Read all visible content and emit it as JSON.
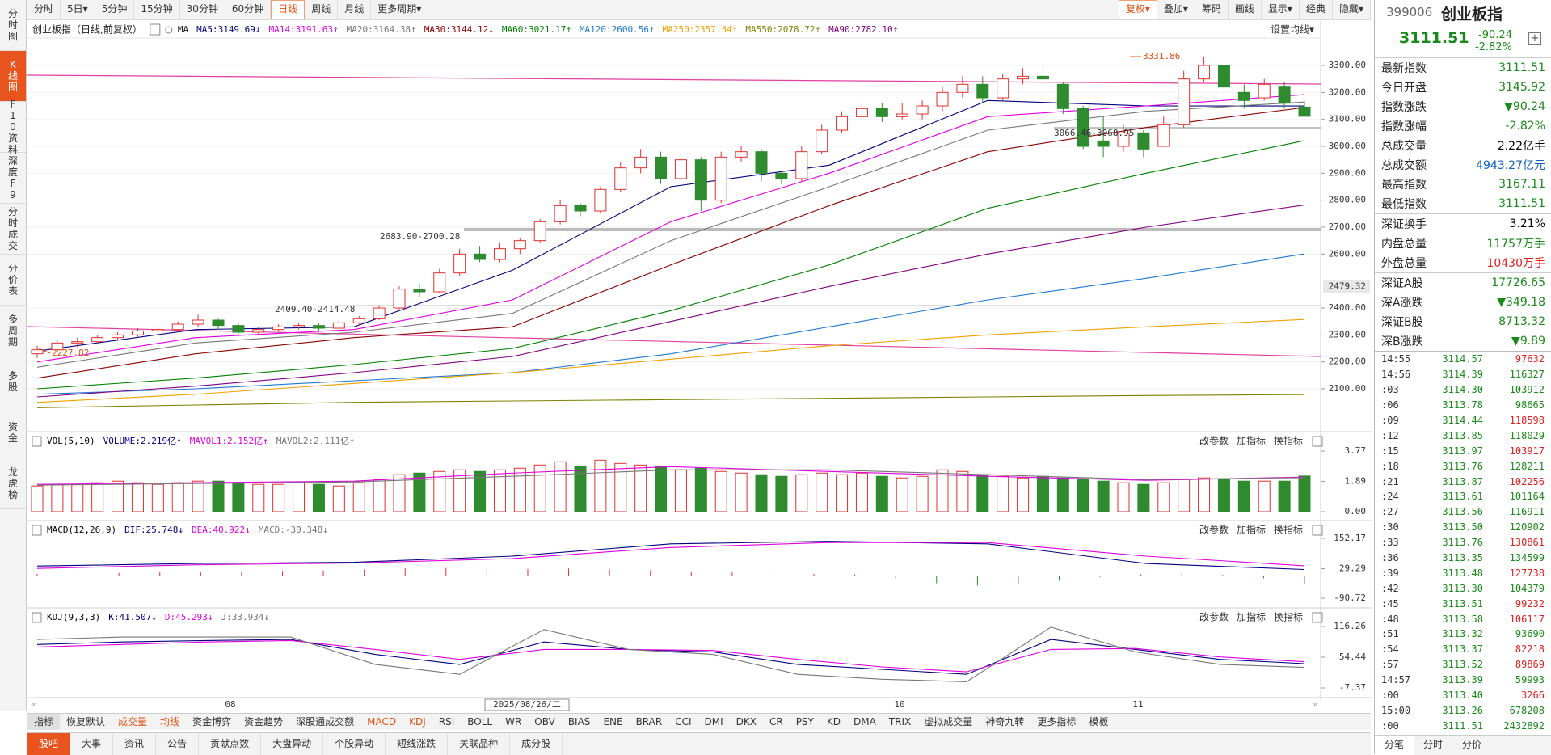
{
  "toolbar": {
    "periods": [
      "分时",
      "5日▾",
      "5分钟",
      "15分钟",
      "30分钟",
      "60分钟",
      "日线",
      "周线",
      "月线",
      "更多周期▾"
    ],
    "active_period": 6,
    "tools": [
      "复权▾",
      "叠加▾",
      "筹码",
      "画线",
      "显示▾",
      "经典",
      "隐藏▾"
    ],
    "active_tool": 0
  },
  "sidebar": {
    "items": [
      "分时图",
      "K线图",
      "F10资料",
      "深度F9",
      "分时成交",
      "分价表",
      "多周期",
      "多股",
      "资金",
      "龙虎榜"
    ],
    "active": 1
  },
  "chart_data": {
    "type": "candlestick",
    "title": "创业板指（日线,前复权）",
    "ma_prefix": "MA",
    "settings_button": "设置均线▾",
    "up_color": "#e03030",
    "down_color": "#2e8b2e",
    "candles": [
      [
        2230,
        2245,
        2260,
        2215
      ],
      [
        2245,
        2270,
        2280,
        2235
      ],
      [
        2270,
        2275,
        2290,
        2255
      ],
      [
        2275,
        2290,
        2300,
        2265
      ],
      [
        2290,
        2300,
        2310,
        2280
      ],
      [
        2300,
        2315,
        2325,
        2290
      ],
      [
        2315,
        2320,
        2330,
        2305
      ],
      [
        2320,
        2340,
        2350,
        2310
      ],
      [
        2340,
        2355,
        2375,
        2330
      ],
      [
        2355,
        2335,
        2360,
        2320
      ],
      [
        2335,
        2310,
        2345,
        2300
      ],
      [
        2310,
        2320,
        2330,
        2300
      ],
      [
        2320,
        2330,
        2340,
        2310
      ],
      [
        2330,
        2335,
        2345,
        2320
      ],
      [
        2335,
        2325,
        2345,
        2315
      ],
      [
        2325,
        2345,
        2355,
        2315
      ],
      [
        2345,
        2360,
        2370,
        2335
      ],
      [
        2360,
        2400,
        2410,
        2355
      ],
      [
        2400,
        2470,
        2480,
        2395
      ],
      [
        2470,
        2460,
        2490,
        2440
      ],
      [
        2460,
        2530,
        2545,
        2455
      ],
      [
        2530,
        2600,
        2620,
        2520
      ],
      [
        2600,
        2580,
        2630,
        2570
      ],
      [
        2580,
        2620,
        2640,
        2570
      ],
      [
        2620,
        2650,
        2660,
        2600
      ],
      [
        2650,
        2720,
        2730,
        2640
      ],
      [
        2720,
        2780,
        2800,
        2710
      ],
      [
        2780,
        2760,
        2790,
        2740
      ],
      [
        2760,
        2840,
        2850,
        2750
      ],
      [
        2840,
        2920,
        2940,
        2830
      ],
      [
        2920,
        2960,
        2990,
        2900
      ],
      [
        2960,
        2880,
        2980,
        2860
      ],
      [
        2880,
        2950,
        2970,
        2870
      ],
      [
        2950,
        2800,
        2960,
        2760
      ],
      [
        2800,
        2960,
        2980,
        2790
      ],
      [
        2960,
        2980,
        3000,
        2940
      ],
      [
        2980,
        2900,
        2990,
        2870
      ],
      [
        2900,
        2880,
        2910,
        2860
      ],
      [
        2880,
        2980,
        3000,
        2870
      ],
      [
        2980,
        3060,
        3080,
        2970
      ],
      [
        3060,
        3110,
        3130,
        3050
      ],
      [
        3110,
        3140,
        3180,
        3100
      ],
      [
        3140,
        3110,
        3160,
        3090
      ],
      [
        3110,
        3120,
        3160,
        3100
      ],
      [
        3120,
        3150,
        3170,
        3100
      ],
      [
        3150,
        3200,
        3220,
        3130
      ],
      [
        3200,
        3230,
        3260,
        3180
      ],
      [
        3230,
        3180,
        3260,
        3160
      ],
      [
        3180,
        3250,
        3270,
        3170
      ],
      [
        3250,
        3260,
        3290,
        3230
      ],
      [
        3260,
        3250,
        3310,
        3240
      ],
      [
        3230,
        3140,
        3240,
        3120
      ],
      [
        3140,
        3000,
        3150,
        2990
      ],
      [
        3020,
        3000,
        3110,
        2960
      ],
      [
        3000,
        3050,
        3080,
        2980
      ],
      [
        3050,
        2990,
        3060,
        2960
      ],
      [
        3000,
        3080,
        3110,
        3000
      ],
      [
        3080,
        3250,
        3280,
        3070
      ],
      [
        3250,
        3300,
        3331.86,
        3240
      ],
      [
        3300,
        3220,
        3310,
        3200
      ],
      [
        3200,
        3170,
        3230,
        3140
      ],
      [
        3180,
        3230,
        3250,
        3170
      ],
      [
        3220,
        3160,
        3240,
        3140
      ],
      [
        3145.92,
        3111.51,
        3167.11,
        3111.51
      ]
    ],
    "ylim": [
      1950,
      3405
    ],
    "yticks": [
      {
        "value": 3300,
        "label": "3300.00"
      },
      {
        "value": 3200,
        "label": "3200.00"
      },
      {
        "value": 3100,
        "label": "3100.00"
      },
      {
        "value": 3000,
        "label": "3000.00"
      },
      {
        "value": 2900,
        "label": "2900.00"
      },
      {
        "value": 2800,
        "label": "2800.00"
      },
      {
        "value": 2700,
        "label": "2700.00"
      },
      {
        "value": 2600,
        "label": "2600.00"
      },
      {
        "value": 2400,
        "label": "2400.00"
      },
      {
        "value": 2300,
        "label": "2300.00"
      },
      {
        "value": 2200,
        "label": "2200.00"
      },
      {
        "value": 2100,
        "label": "2100.00"
      }
    ],
    "marker_tick": 2479.32,
    "ma_lines": [
      {
        "label": "MA5:3149.69↓",
        "color": "#000080",
        "values": [
          2240,
          2320,
          2330,
          2540,
          2850,
          2930,
          3170,
          3150,
          3149.69
        ]
      },
      {
        "label": "MA14:3191.63↑",
        "color": "#e000e0",
        "values": [
          2200,
          2290,
          2320,
          2430,
          2720,
          2900,
          3110,
          3150,
          3191.63
        ]
      },
      {
        "label": "MA20:3164.38↑",
        "color": "#777777",
        "values": [
          2180,
          2270,
          2310,
          2380,
          2650,
          2850,
          3060,
          3130,
          3164.38
        ]
      },
      {
        "label": "MA30:3144.12↓",
        "color": "#8b0000",
        "values": [
          2140,
          2230,
          2290,
          2330,
          2560,
          2780,
          2980,
          3070,
          3144.12
        ]
      },
      {
        "label": "MA60:3021.17↑",
        "color": "#008000",
        "values": [
          2100,
          2140,
          2190,
          2250,
          2390,
          2560,
          2770,
          2900,
          3021.17
        ]
      },
      {
        "label": "MA120:2600.56↑",
        "color": "#1e78d0",
        "values": [
          2080,
          2100,
          2130,
          2160,
          2230,
          2330,
          2430,
          2510,
          2600.56
        ]
      },
      {
        "label": "MA250:2357.34↑",
        "color": "#f0a000",
        "values": [
          2050,
          2080,
          2120,
          2160,
          2210,
          2260,
          2300,
          2330,
          2357.34
        ]
      },
      {
        "label": "MA550:2078.72↑",
        "color": "#808000",
        "values": [
          2030,
          2040,
          2050,
          2055,
          2060,
          2065,
          2070,
          2075,
          2078.72
        ]
      },
      {
        "label": "MA90:2782.10↑",
        "color": "#800080",
        "values": [
          2070,
          2110,
          2160,
          2220,
          2350,
          2480,
          2600,
          2700,
          2782.1
        ]
      }
    ],
    "annotations": [
      "3331.86",
      "2227.82"
    ],
    "range_notes": [
      "3066.46-3068.95",
      "2683.90-2700.28",
      "2409.40-2414.48"
    ],
    "x_labels": [
      "08",
      "2025/08/26/二",
      "10",
      "11"
    ],
    "panel_buttons": [
      "改参数",
      "加指标",
      "换指标"
    ],
    "volume": {
      "legend": [
        {
          "label": "VOL(5,10)",
          "color": "#000000"
        },
        {
          "label": "VOLUME:2.219亿↑",
          "color": "#000080"
        },
        {
          "label": "MAVOL1:2.152亿↑",
          "color": "#e000e0",
          "values": [
            1.7,
            1.8,
            1.9,
            2.4,
            2.8,
            2.5,
            2.2,
            1.95,
            2.152
          ]
        },
        {
          "label": "MAVOL2:2.111亿↑",
          "color": "#777777",
          "values": [
            1.65,
            1.75,
            1.85,
            2.2,
            2.6,
            2.6,
            2.3,
            2.0,
            2.111
          ]
        }
      ],
      "values": [
        1.6,
        1.7,
        1.7,
        1.8,
        1.9,
        1.8,
        1.7,
        1.8,
        1.9,
        1.9,
        1.8,
        1.7,
        1.7,
        1.8,
        1.7,
        1.6,
        1.8,
        2.0,
        2.3,
        2.4,
        2.5,
        2.6,
        2.5,
        2.6,
        2.7,
        2.9,
        3.1,
        2.8,
        3.2,
        3.0,
        2.9,
        2.8,
        2.6,
        2.7,
        2.5,
        2.4,
        2.3,
        2.2,
        2.3,
        2.4,
        2.3,
        2.4,
        2.2,
        2.1,
        2.2,
        2.6,
        2.5,
        2.3,
        2.2,
        2.1,
        2.2,
        2.1,
        2.0,
        1.9,
        1.8,
        1.7,
        1.8,
        2.0,
        2.1,
        2.0,
        1.9,
        1.9,
        1.9,
        2.219
      ],
      "ylim": [
        0,
        3.77
      ],
      "yticks": [
        3.77,
        1.89,
        {
          "value": 0,
          "label": "0.00"
        }
      ]
    },
    "macd": {
      "legend": [
        {
          "label": "MACD(12,26,9)",
          "color": "#000000"
        },
        {
          "label": "DIF:25.748↓",
          "color": "#000080",
          "values": [
            40,
            50,
            55,
            80,
            130,
            140,
            130,
            50,
            25.748
          ]
        },
        {
          "label": "DEA:40.922↓",
          "color": "#e000e0",
          "values": [
            30,
            45,
            52,
            70,
            115,
            135,
            135,
            80,
            40.922
          ]
        },
        {
          "label": "MACD:-30.348↓",
          "color": "#777777"
        }
      ],
      "hist": [
        8,
        10,
        12,
        14,
        16,
        18,
        20,
        22,
        26,
        30,
        32,
        30,
        28,
        30,
        26,
        22,
        18,
        14,
        10,
        8,
        6,
        -10,
        -30,
        -40,
        -35,
        -20,
        -5,
        6,
        10,
        4,
        -10,
        -30.348
      ],
      "ylim": [
        -90.72,
        152.17
      ],
      "yticks": [
        152.17,
        29.29,
        -90.72
      ]
    },
    "kdj": {
      "legend": [
        {
          "label": "KDJ(9,3,3)",
          "color": "#000000"
        },
        {
          "label": "K:41.507↓",
          "color": "#000080",
          "values": [
            80,
            85,
            88,
            90,
            60,
            40,
            85,
            70,
            65,
            40,
            30,
            20,
            90,
            70,
            50,
            41.507
          ]
        },
        {
          "label": "D:45.293↓",
          "color": "#e000e0",
          "values": [
            75,
            80,
            85,
            88,
            70,
            50,
            70,
            70,
            68,
            50,
            35,
            25,
            70,
            72,
            55,
            45.293
          ]
        },
        {
          "label": "J:33.934↓",
          "color": "#777777",
          "values": [
            90,
            95,
            95,
            95,
            40,
            20,
            110,
            70,
            60,
            20,
            10,
            5,
            115,
            65,
            40,
            33.934
          ]
        }
      ],
      "ylim": [
        -7.37,
        116.26
      ],
      "yticks": [
        116.26,
        54.44,
        -7.37
      ]
    }
  },
  "indicator_tabs": [
    "指标",
    "恢复默认",
    "成交量",
    "均线",
    "资金博弈",
    "资金趋势",
    "深股通成交额",
    "MACD",
    "KDJ",
    "RSI",
    "BOLL",
    "WR",
    "OBV",
    "BIAS",
    "ENE",
    "BRAR",
    "CCI",
    "DMI",
    "DKX",
    "CR",
    "PSY",
    "KD",
    "DMA",
    "TRIX",
    "虚拟成交量",
    "神奇九转",
    "更多指标",
    "模板"
  ],
  "indicator_highlight": [
    2,
    3,
    7,
    8
  ],
  "bottom_tabs": [
    "股吧",
    "大事",
    "资讯",
    "公告",
    "贡献点数",
    "大盘异动",
    "个股异动",
    "短线涨跌",
    "关联品种",
    "成分股"
  ],
  "bottom_active": 0,
  "quote": {
    "code": "399006",
    "name": "创业板指",
    "price": "3111.51",
    "change": "-90.24",
    "pct": "-2.82%",
    "rows": [
      {
        "label": "最新指数",
        "value": "3111.51",
        "color": "#1a8a1a"
      },
      {
        "label": "今日开盘",
        "value": "3145.92",
        "color": "#1a8a1a"
      },
      {
        "label": "指数涨跌",
        "value": "▼90.24",
        "color": "#1a8a1a"
      },
      {
        "label": "指数涨幅",
        "value": "-2.82%",
        "color": "#1a8a1a"
      },
      {
        "label": "总成交量",
        "value": "2.22亿手",
        "color": "#000000"
      },
      {
        "label": "总成交额",
        "value": "4943.27亿元",
        "color": "#1060c0"
      },
      {
        "label": "最高指数",
        "value": "3167.11",
        "color": "#1a8a1a"
      },
      {
        "label": "最低指数",
        "value": "3111.51",
        "color": "#1a8a1a"
      },
      {
        "label": "深证换手",
        "value": "3.21%",
        "color": "#000000"
      },
      {
        "label": "内盘总量",
        "value": "11757万手",
        "color": "#1a8a1a"
      },
      {
        "label": "外盘总量",
        "value": "10430万手",
        "color": "#e02020"
      },
      {
        "label": "深证A股",
        "value": "17726.65",
        "color": "#1a8a1a"
      },
      {
        "label": "深A涨跌",
        "value": "▼349.18",
        "color": "#1a8a1a"
      },
      {
        "label": "深证B股",
        "value": "8713.32",
        "color": "#1a8a1a"
      },
      {
        "label": "深B涨跌",
        "value": "▼9.89",
        "color": "#1a8a1a"
      }
    ],
    "ticks": [
      {
        "time": "14:55",
        "price": "3114.57",
        "volume": "97632",
        "color": "#e02020"
      },
      {
        "time": "14:56",
        "price": "3114.39",
        "volume": "116327",
        "color": "#1a8a1a"
      },
      {
        "time": ":03",
        "price": "3114.30",
        "volume": "103912",
        "color": "#1a8a1a"
      },
      {
        "time": ":06",
        "price": "3113.78",
        "volume": "98665",
        "color": "#1a8a1a"
      },
      {
        "time": ":09",
        "price": "3114.44",
        "volume": "118598",
        "color": "#e02020"
      },
      {
        "time": ":12",
        "price": "3113.85",
        "volume": "118029",
        "color": "#1a8a1a"
      },
      {
        "time": ":15",
        "price": "3113.97",
        "volume": "103917",
        "color": "#e02020"
      },
      {
        "time": ":18",
        "price": "3113.76",
        "volume": "128211",
        "color": "#1a8a1a"
      },
      {
        "time": ":21",
        "price": "3113.87",
        "volume": "102256",
        "color": "#e02020"
      },
      {
        "time": ":24",
        "price": "3113.61",
        "volume": "101164",
        "color": "#1a8a1a"
      },
      {
        "time": ":27",
        "price": "3113.56",
        "volume": "116911",
        "color": "#1a8a1a"
      },
      {
        "time": ":30",
        "price": "3113.50",
        "volume": "120902",
        "color": "#1a8a1a"
      },
      {
        "time": ":33",
        "price": "3113.76",
        "volume": "130861",
        "color": "#e02020"
      },
      {
        "time": ":36",
        "price": "3113.35",
        "volume": "134599",
        "color": "#1a8a1a"
      },
      {
        "time": ":39",
        "price": "3113.48",
        "volume": "127738",
        "color": "#e02020"
      },
      {
        "time": ":42",
        "price": "3113.30",
        "volume": "104379",
        "color": "#1a8a1a"
      },
      {
        "time": ":45",
        "price": "3113.51",
        "volume": "99232",
        "color": "#e02020"
      },
      {
        "time": ":48",
        "price": "3113.58",
        "volume": "106117",
        "color": "#e02020"
      },
      {
        "time": ":51",
        "price": "3113.32",
        "volume": "93690",
        "color": "#1a8a1a"
      },
      {
        "time": ":54",
        "price": "3113.37",
        "volume": "82218",
        "color": "#e02020"
      },
      {
        "time": ":57",
        "price": "3113.52",
        "volume": "89869",
        "color": "#e02020"
      },
      {
        "time": "14:57",
        "price": "3113.39",
        "volume": "59993",
        "color": "#1a8a1a"
      },
      {
        "time": ":00",
        "price": "3113.40",
        "volume": "3266",
        "color": "#e02020"
      },
      {
        "time": "15:00",
        "price": "3113.26",
        "volume": "678208",
        "color": "#1a8a1a"
      },
      {
        "time": ":00",
        "price": "3111.51",
        "volume": "2432892",
        "color": "#1a8a1a"
      }
    ],
    "tabs": [
      "分笔",
      "分时",
      "分价"
    ]
  }
}
